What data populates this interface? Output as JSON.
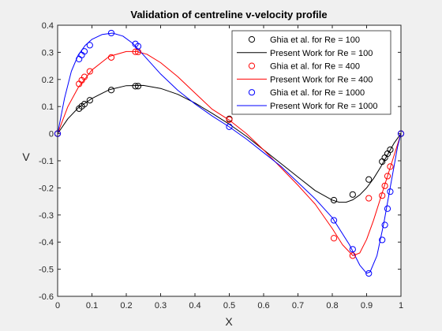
{
  "chart_data": {
    "type": "line",
    "title": "Validation of centreline v-velocity profile",
    "xlabel": "X",
    "ylabel": "V",
    "xlim": [
      0,
      1
    ],
    "ylim": [
      -0.6,
      0.4
    ],
    "xticks": [
      "0",
      "0.1",
      "0.2",
      "0.3",
      "0.4",
      "0.5",
      "0.6",
      "0.7",
      "0.8",
      "0.9",
      "1"
    ],
    "yticks": [
      "-0.6",
      "-0.5",
      "-0.4",
      "-0.3",
      "-0.2",
      "-0.1",
      "0",
      "0.1",
      "0.2",
      "0.3",
      "0.4"
    ],
    "grid": false,
    "legend_position": "top-right",
    "series": [
      {
        "name": "Ghia et al. for Re = 100",
        "kind": "markers",
        "color": "#000000",
        "x": [
          0,
          0.0625,
          0.0703,
          0.0781,
          0.0938,
          0.1563,
          0.2266,
          0.2344,
          0.5,
          0.8047,
          0.8594,
          0.9063,
          0.9453,
          0.9531,
          0.9609,
          0.9688,
          1
        ],
        "y": [
          0,
          0.0923,
          0.1009,
          0.1089,
          0.1232,
          0.1608,
          0.1751,
          0.1753,
          0.0545,
          -0.2453,
          -0.2245,
          -0.1691,
          -0.1031,
          -0.0886,
          -0.0739,
          -0.0591,
          0
        ]
      },
      {
        "name": "Present Work for Re = 100",
        "kind": "line",
        "color": "#000000",
        "x": [
          0,
          0.03,
          0.06,
          0.1,
          0.15,
          0.2,
          0.25,
          0.3,
          0.35,
          0.4,
          0.45,
          0.5,
          0.55,
          0.6,
          0.65,
          0.7,
          0.75,
          0.8,
          0.82,
          0.84,
          0.86,
          0.88,
          0.9,
          0.92,
          0.94,
          0.96,
          0.98,
          1
        ],
        "y": [
          0,
          0.055,
          0.095,
          0.13,
          0.162,
          0.177,
          0.178,
          0.167,
          0.145,
          0.113,
          0.075,
          0.035,
          -0.01,
          -0.06,
          -0.11,
          -0.16,
          -0.21,
          -0.245,
          -0.253,
          -0.253,
          -0.244,
          -0.226,
          -0.2,
          -0.166,
          -0.125,
          -0.08,
          -0.035,
          0
        ]
      },
      {
        "name": "Ghia et al. for Re = 400",
        "kind": "markers",
        "color": "#ff0000",
        "x": [
          0,
          0.0625,
          0.0703,
          0.0781,
          0.0938,
          0.1563,
          0.2266,
          0.2344,
          0.5,
          0.8047,
          0.8594,
          0.9063,
          0.9453,
          0.9531,
          0.9609,
          0.9688,
          1
        ],
        "y": [
          0,
          0.1836,
          0.1971,
          0.2092,
          0.2297,
          0.2812,
          0.302,
          0.3017,
          0.0519,
          -0.3856,
          -0.4499,
          -0.2383,
          -0.2285,
          -0.1925,
          -0.1566,
          -0.1215,
          0
        ]
      },
      {
        "name": "Present Work for Re = 400",
        "kind": "line",
        "color": "#ff0000",
        "x": [
          0,
          0.03,
          0.06,
          0.1,
          0.15,
          0.2,
          0.23,
          0.26,
          0.3,
          0.35,
          0.4,
          0.45,
          0.5,
          0.55,
          0.6,
          0.65,
          0.7,
          0.75,
          0.8,
          0.83,
          0.86,
          0.88,
          0.9,
          0.92,
          0.94,
          0.96,
          0.98,
          1
        ],
        "y": [
          0,
          0.1,
          0.17,
          0.235,
          0.285,
          0.303,
          0.303,
          0.293,
          0.262,
          0.21,
          0.15,
          0.09,
          0.05,
          0.0,
          -0.06,
          -0.125,
          -0.19,
          -0.26,
          -0.35,
          -0.41,
          -0.45,
          -0.44,
          -0.39,
          -0.32,
          -0.24,
          -0.16,
          -0.08,
          0
        ]
      },
      {
        "name": "Ghia et al. for Re = 1000",
        "kind": "markers",
        "color": "#0000ff",
        "x": [
          0,
          0.0625,
          0.0703,
          0.0781,
          0.0938,
          0.1563,
          0.2266,
          0.2344,
          0.5,
          0.8047,
          0.8594,
          0.9063,
          0.9453,
          0.9531,
          0.9609,
          0.9688,
          1
        ],
        "y": [
          0,
          0.2749,
          0.2901,
          0.3035,
          0.3263,
          0.3711,
          0.3309,
          0.3224,
          0.0253,
          -0.3197,
          -0.4265,
          -0.5155,
          -0.3919,
          -0.3369,
          -0.2767,
          -0.2139,
          0
        ]
      },
      {
        "name": "Present Work for Re = 1000",
        "kind": "line",
        "color": "#0000ff",
        "x": [
          0,
          0.02,
          0.04,
          0.06,
          0.08,
          0.1,
          0.13,
          0.16,
          0.19,
          0.22,
          0.25,
          0.3,
          0.35,
          0.4,
          0.45,
          0.5,
          0.55,
          0.6,
          0.65,
          0.7,
          0.75,
          0.8,
          0.85,
          0.88,
          0.9,
          0.91,
          0.93,
          0.95,
          0.97,
          0.99,
          1
        ],
        "y": [
          0,
          0.13,
          0.23,
          0.29,
          0.325,
          0.348,
          0.366,
          0.371,
          0.36,
          0.332,
          0.29,
          0.22,
          0.16,
          0.11,
          0.065,
          0.025,
          -0.02,
          -0.07,
          -0.12,
          -0.18,
          -0.24,
          -0.31,
          -0.41,
          -0.485,
          -0.515,
          -0.51,
          -0.45,
          -0.33,
          -0.19,
          -0.05,
          0
        ]
      }
    ]
  }
}
